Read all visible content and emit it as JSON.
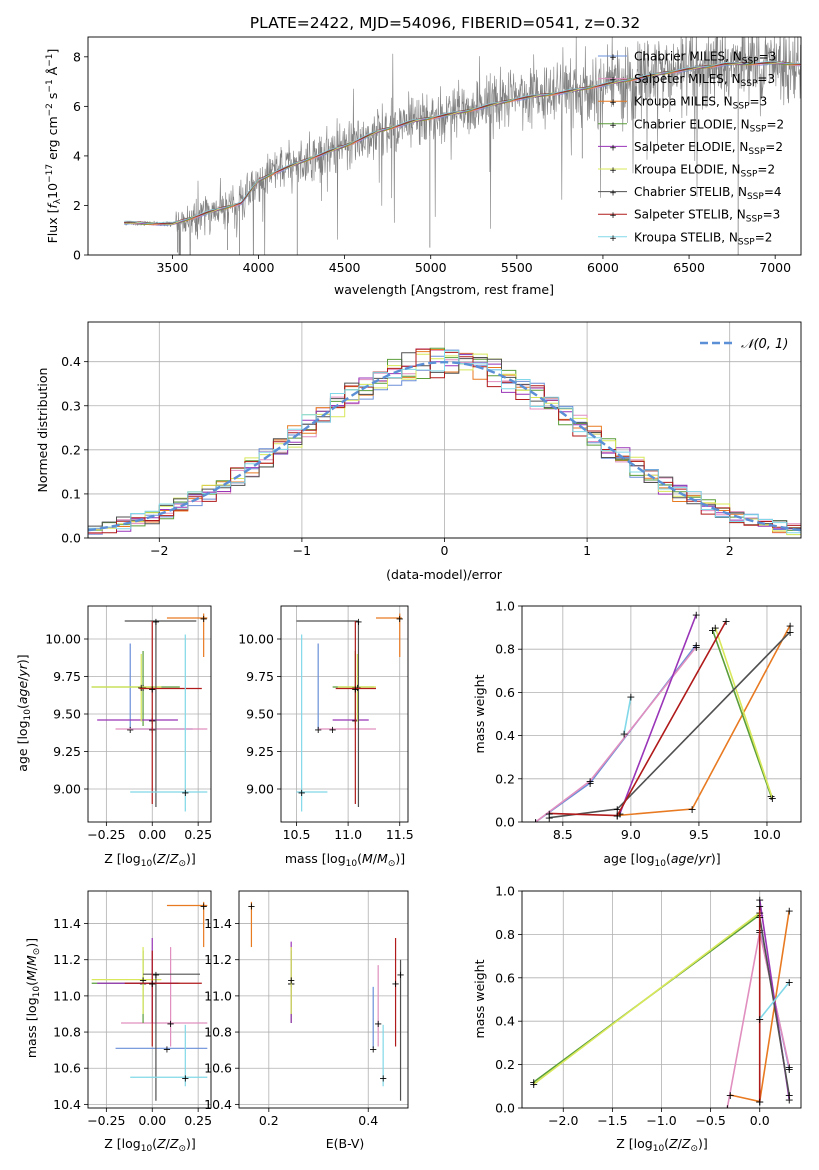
{
  "figure": {
    "title": "PLATE=2422, MJD=54096, FIBERID=0541, z=0.32"
  },
  "models": [
    {
      "name": "Chabrier MILES, N$_{SSP}$=3",
      "label_main": "Chabrier MILES, N",
      "label_sub": "SSP",
      "label_tail": "=3",
      "color": "#6a8fd8"
    },
    {
      "name": "Salpeter MILES, N$_{SSP}$=3",
      "label_main": "Salpeter MILES, N",
      "label_sub": "SSP",
      "label_tail": "=3",
      "color": "#e08fbf"
    },
    {
      "name": "Kroupa MILES, N$_{SSP}$=3",
      "label_main": "Kroupa MILES, N",
      "label_sub": "SSP",
      "label_tail": "=3",
      "color": "#e87a22"
    },
    {
      "name": "Chabrier ELODIE, N$_{SSP}$=2",
      "label_main": "Chabrier ELODIE, N",
      "label_sub": "SSP",
      "label_tail": "=2",
      "color": "#5a9e3a"
    },
    {
      "name": "Salpeter ELODIE, N$_{SSP}$=2",
      "label_main": "Salpeter ELODIE, N",
      "label_sub": "SSP",
      "label_tail": "=2",
      "color": "#9a35b8"
    },
    {
      "name": "Kroupa ELODIE, N$_{SSP}$=2",
      "label_main": "Kroupa ELODIE, N",
      "label_sub": "SSP",
      "label_tail": "=2",
      "color": "#d8e85a"
    },
    {
      "name": "Chabrier STELIB, N$_{SSP}$=4",
      "label_main": "Chabrier STELIB, N",
      "label_sub": "SSP",
      "label_tail": "=4",
      "color": "#505050"
    },
    {
      "name": "Salpeter STELIB, N$_{SSP}$=3",
      "label_main": "Salpeter STELIB, N",
      "label_sub": "SSP",
      "label_tail": "=3",
      "color": "#b01a1a"
    },
    {
      "name": "Kroupa STELIB, N$_{SSP}$=2",
      "label_main": "Kroupa STELIB, N",
      "label_sub": "SSP",
      "label_tail": "=2",
      "color": "#80d8e8"
    }
  ],
  "chart_data": [
    {
      "type": "line",
      "panel": "spectrum",
      "xlabel": "wavelength [Angstrom, rest frame]",
      "ylabel": "Flux [f_λ 10^-17 erg cm^-2 s^-1 Å^-1]",
      "xlim": [
        3010,
        7150
      ],
      "ylim": [
        0,
        8.8
      ],
      "xticks": [
        3500,
        4000,
        4500,
        5000,
        5500,
        6000,
        6500,
        7000
      ],
      "yticks": [
        0,
        2,
        4,
        6,
        8
      ],
      "data_color": "#808080",
      "continuum_knots": [
        [
          3220,
          1.3
        ],
        [
          3500,
          1.25
        ],
        [
          3700,
          1.7
        ],
        [
          3900,
          2.1
        ],
        [
          4000,
          3.0
        ],
        [
          4100,
          3.35
        ],
        [
          4300,
          3.9
        ],
        [
          4500,
          4.4
        ],
        [
          4700,
          5.0
        ],
        [
          4900,
          5.4
        ],
        [
          5200,
          5.8
        ],
        [
          5500,
          6.3
        ],
        [
          5800,
          6.6
        ],
        [
          6100,
          7.0
        ],
        [
          6400,
          7.4
        ],
        [
          6700,
          7.7
        ],
        [
          7000,
          7.75
        ],
        [
          7150,
          7.7
        ]
      ],
      "grid": false,
      "legend": "upper right"
    },
    {
      "type": "histogram",
      "panel": "residuals",
      "xlabel": "(data-model)/error",
      "ylabel": "Normed distribution",
      "xlim": [
        -2.5,
        2.5
      ],
      "ylim": [
        0,
        0.49
      ],
      "xticks": [
        -2,
        -1,
        0,
        1,
        2
      ],
      "yticks": [
        0.0,
        0.1,
        0.2,
        0.3,
        0.4
      ],
      "bin_width": 0.1,
      "reference_curve": {
        "name": "N(0,1)",
        "label": "𝒩(0, 1)",
        "color": "#5b8fd6",
        "style": "dashed"
      },
      "grid": true,
      "legend": "upper right"
    },
    {
      "type": "errorbar",
      "panel": "age_vs_Z",
      "xlabel": "Z [log10(Z/Z⊙)]",
      "ylabel": "age [log10(age/yr)]",
      "xlim": [
        -0.35,
        0.32
      ],
      "ylim": [
        8.78,
        10.22
      ],
      "xticks": [
        -0.25,
        0.0,
        0.25
      ],
      "yticks": [
        9.0,
        9.25,
        9.5,
        9.75,
        10.0
      ],
      "points": [
        {
          "model": 0,
          "x": -0.12,
          "xerr": 0.0,
          "y": 9.4,
          "yerr": 0.0,
          "horizontal": [
            -0.12,
            0.22
          ],
          "vertical": [
            9.4,
            9.97
          ]
        },
        {
          "model": 1,
          "x": 0.0,
          "y": 9.4,
          "horizontal": [
            -0.2,
            0.3
          ],
          "vertical": [
            9.4,
            9.4
          ]
        },
        {
          "model": 2,
          "x": 0.28,
          "y": 10.14,
          "horizontal": [
            0.08,
            0.3
          ],
          "vertical": [
            9.88,
            10.17
          ]
        },
        {
          "model": 3,
          "x": -0.05,
          "y": 9.68,
          "horizontal": [
            -0.33,
            0.15
          ],
          "vertical": [
            9.42,
            9.92
          ]
        },
        {
          "model": 4,
          "x": 0.0,
          "y": 9.46,
          "horizontal": [
            -0.3,
            0.14
          ],
          "vertical": [
            9.46,
            9.46
          ]
        },
        {
          "model": 5,
          "x": -0.06,
          "y": 9.68,
          "horizontal": [
            -0.33,
            0.05
          ],
          "vertical": [
            9.45,
            9.9
          ]
        },
        {
          "model": 6,
          "x": 0.02,
          "y": 10.12,
          "horizontal": [
            -0.15,
            0.24
          ],
          "vertical": [
            8.88,
            10.12
          ]
        },
        {
          "model": 7,
          "x": 0.0,
          "y": 9.67,
          "horizontal": [
            -0.07,
            0.27
          ],
          "vertical": [
            8.9,
            10.12
          ]
        },
        {
          "model": 8,
          "x": 0.18,
          "y": 8.98,
          "horizontal": [
            -0.12,
            0.3
          ],
          "vertical": [
            8.85,
            10.03
          ]
        }
      ]
    },
    {
      "type": "errorbar",
      "panel": "age_vs_mass",
      "xlabel": "mass [log10(M/M⊙)]",
      "ylabel": "",
      "xlim": [
        10.35,
        11.58
      ],
      "ylim": [
        8.78,
        10.22
      ],
      "xticks": [
        10.5,
        11.0,
        11.5
      ],
      "yticks": [
        9.0,
        9.25,
        9.5,
        9.75,
        10.0
      ],
      "points": [
        {
          "model": 0,
          "x": 10.71,
          "y": 9.4,
          "horizontal": [
            10.71,
            10.71
          ],
          "vertical": [
            9.4,
            9.97
          ]
        },
        {
          "model": 1,
          "x": 10.85,
          "y": 9.4,
          "horizontal": [
            10.72,
            11.27
          ],
          "vertical": [
            9.4,
            9.4
          ]
        },
        {
          "model": 2,
          "x": 11.5,
          "y": 10.14,
          "horizontal": [
            11.27,
            11.52
          ],
          "vertical": [
            9.88,
            10.17
          ]
        },
        {
          "model": 3,
          "x": 11.07,
          "y": 9.68,
          "horizontal": [
            10.85,
            11.25
          ],
          "vertical": [
            9.45,
            9.92
          ]
        },
        {
          "model": 4,
          "x": 11.07,
          "y": 9.46,
          "horizontal": [
            10.85,
            11.2
          ],
          "vertical": [
            9.46,
            9.46
          ]
        },
        {
          "model": 5,
          "x": 11.09,
          "y": 9.68,
          "horizontal": [
            10.9,
            11.27
          ],
          "vertical": [
            9.45,
            9.9
          ]
        },
        {
          "model": 6,
          "x": 11.1,
          "y": 10.12,
          "horizontal": [
            10.5,
            11.1
          ],
          "vertical": [
            8.88,
            10.12
          ]
        },
        {
          "model": 7,
          "x": 11.07,
          "y": 9.67,
          "horizontal": [
            10.88,
            11.27
          ],
          "vertical": [
            8.9,
            10.12
          ]
        },
        {
          "model": 8,
          "x": 10.55,
          "y": 8.98,
          "horizontal": [
            10.5,
            10.8
          ],
          "vertical": [
            8.85,
            10.03
          ]
        }
      ]
    },
    {
      "type": "line",
      "panel": "weight_vs_age",
      "xlabel": "age [log10(age/yr)]",
      "ylabel": "mass weight",
      "xlim": [
        8.2,
        10.25
      ],
      "ylim": [
        0,
        1
      ],
      "xticks": [
        8.5,
        9.0,
        9.5,
        10.0
      ],
      "yticks": [
        0.0,
        0.2,
        0.4,
        0.6,
        0.8,
        1.0
      ],
      "series": [
        {
          "model": 0,
          "x": [
            8.3,
            8.7,
            9.48
          ],
          "y": [
            0.0,
            0.18,
            0.82
          ]
        },
        {
          "model": 1,
          "x": [
            8.3,
            8.7,
            9.48
          ],
          "y": [
            0.0,
            0.19,
            0.81
          ]
        },
        {
          "model": 2,
          "x": [
            8.9,
            9.45,
            10.17
          ],
          "y": [
            0.03,
            0.06,
            0.91
          ]
        },
        {
          "model": 3,
          "x": [
            9.6,
            10.03
          ],
          "y": [
            0.89,
            0.12
          ]
        },
        {
          "model": 4,
          "x": [
            8.92,
            9.48
          ],
          "y": [
            0.04,
            0.96
          ]
        },
        {
          "model": 5,
          "x": [
            9.62,
            10.04
          ],
          "y": [
            0.9,
            0.11
          ]
        },
        {
          "model": 6,
          "x": [
            8.4,
            8.9,
            10.17
          ],
          "y": [
            0.02,
            0.06,
            0.88
          ]
        },
        {
          "model": 7,
          "x": [
            8.4,
            8.9,
            9.7
          ],
          "y": [
            0.04,
            0.03,
            0.93
          ]
        },
        {
          "model": 8,
          "x": [
            8.95,
            9.0
          ],
          "y": [
            0.41,
            0.58
          ]
        }
      ],
      "grid": true
    },
    {
      "type": "errorbar",
      "panel": "mass_vs_Z",
      "xlabel": "Z [log10(Z/Z⊙)]",
      "ylabel": "mass [log10(M/M⊙)]",
      "xlim": [
        -0.35,
        0.32
      ],
      "ylim": [
        10.38,
        11.58
      ],
      "xticks": [
        -0.25,
        0.0,
        0.25
      ],
      "yticks": [
        10.4,
        10.6,
        10.8,
        11.0,
        11.2,
        11.4
      ],
      "points": [
        {
          "model": 0,
          "x": 0.08,
          "y": 10.71,
          "horizontal": [
            -0.2,
            0.3
          ],
          "vertical": [
            10.71,
            10.71
          ]
        },
        {
          "model": 1,
          "x": 0.1,
          "y": 10.85,
          "horizontal": [
            -0.17,
            0.3
          ],
          "vertical": [
            10.72,
            11.27
          ]
        },
        {
          "model": 2,
          "x": 0.28,
          "y": 11.5,
          "horizontal": [
            0.08,
            0.3
          ],
          "vertical": [
            11.27,
            11.52
          ]
        },
        {
          "model": 3,
          "x": -0.05,
          "y": 11.07,
          "horizontal": [
            -0.33,
            0.15
          ],
          "vertical": [
            10.85,
            11.25
          ]
        },
        {
          "model": 4,
          "x": 0.0,
          "y": 11.07,
          "horizontal": [
            -0.3,
            0.14
          ],
          "vertical": [
            10.85,
            11.32
          ]
        },
        {
          "model": 5,
          "x": -0.05,
          "y": 11.09,
          "horizontal": [
            -0.33,
            0.05
          ],
          "vertical": [
            10.9,
            11.27
          ]
        },
        {
          "model": 6,
          "x": 0.02,
          "y": 11.12,
          "horizontal": [
            -0.05,
            0.26
          ],
          "vertical": [
            10.42,
            11.12
          ]
        },
        {
          "model": 7,
          "x": 0.0,
          "y": 11.07,
          "horizontal": [
            -0.15,
            0.27
          ],
          "vertical": [
            10.72,
            11.25
          ]
        },
        {
          "model": 8,
          "x": 0.18,
          "y": 10.55,
          "horizontal": [
            -0.12,
            0.3
          ],
          "vertical": [
            10.5,
            10.84
          ]
        }
      ]
    },
    {
      "type": "errorbar",
      "panel": "mass_vs_ebv",
      "xlabel": "E(B-V)",
      "ylabel": "",
      "xlim": [
        0.14,
        0.48
      ],
      "ylim": [
        10.38,
        11.58
      ],
      "xticks": [
        0.2,
        0.4
      ],
      "yticks": [
        10.4,
        10.6,
        10.8,
        11.0,
        11.2,
        11.4
      ],
      "points": [
        {
          "model": 0,
          "x": 0.41,
          "y": 10.71,
          "vertical": [
            10.71,
            11.05
          ]
        },
        {
          "model": 1,
          "x": 0.42,
          "y": 10.85,
          "vertical": [
            10.72,
            11.17
          ]
        },
        {
          "model": 2,
          "x": 0.165,
          "y": 11.5,
          "vertical": [
            11.27,
            11.52
          ]
        },
        {
          "model": 3,
          "x": 0.245,
          "y": 11.07,
          "vertical": [
            10.85,
            11.25
          ]
        },
        {
          "model": 4,
          "x": 0.245,
          "y": 11.07,
          "vertical": [
            10.85,
            11.3
          ]
        },
        {
          "model": 5,
          "x": 0.245,
          "y": 11.09,
          "vertical": [
            10.9,
            11.27
          ]
        },
        {
          "model": 6,
          "x": 0.465,
          "y": 11.12,
          "vertical": [
            10.42,
            11.2
          ]
        },
        {
          "model": 7,
          "x": 0.455,
          "y": 11.07,
          "vertical": [
            10.72,
            11.32
          ]
        },
        {
          "model": 8,
          "x": 0.43,
          "y": 10.55,
          "vertical": [
            10.5,
            10.84
          ]
        }
      ]
    },
    {
      "type": "line",
      "panel": "weight_vs_Z",
      "xlabel": "Z [log10(Z/Z⊙)]",
      "ylabel": "mass weight",
      "xlim": [
        -2.42,
        0.42
      ],
      "ylim": [
        0,
        1
      ],
      "xticks": [
        -2.0,
        -1.5,
        -1.0,
        -0.5,
        0.0
      ],
      "yticks": [
        0.0,
        0.2,
        0.4,
        0.6,
        0.8,
        1.0
      ],
      "series": [
        {
          "model": 0,
          "x": [
            0.0,
            0.3
          ],
          "y": [
            0.82,
            0.18
          ]
        },
        {
          "model": 1,
          "x": [
            -0.33,
            0.0,
            0.3
          ],
          "y": [
            0.0,
            0.81,
            0.19
          ]
        },
        {
          "model": 2,
          "x": [
            -0.3,
            0.0,
            0.3
          ],
          "y": [
            0.06,
            0.03,
            0.91
          ]
        },
        {
          "model": 3,
          "x": [
            -2.3,
            0.0
          ],
          "y": [
            0.12,
            0.89
          ]
        },
        {
          "model": 4,
          "x": [
            0.0,
            0.3
          ],
          "y": [
            0.96,
            0.04
          ]
        },
        {
          "model": 5,
          "x": [
            -2.3,
            0.0
          ],
          "y": [
            0.11,
            0.9
          ]
        },
        {
          "model": 6,
          "x": [
            0.0,
            0.3
          ],
          "y": [
            0.88,
            0.06
          ]
        },
        {
          "model": 7,
          "x": [
            0.0,
            0.0
          ],
          "y": [
            0.93,
            0.03
          ]
        },
        {
          "model": 8,
          "x": [
            0.0,
            0.3
          ],
          "y": [
            0.41,
            0.58
          ]
        }
      ],
      "grid": true
    }
  ]
}
